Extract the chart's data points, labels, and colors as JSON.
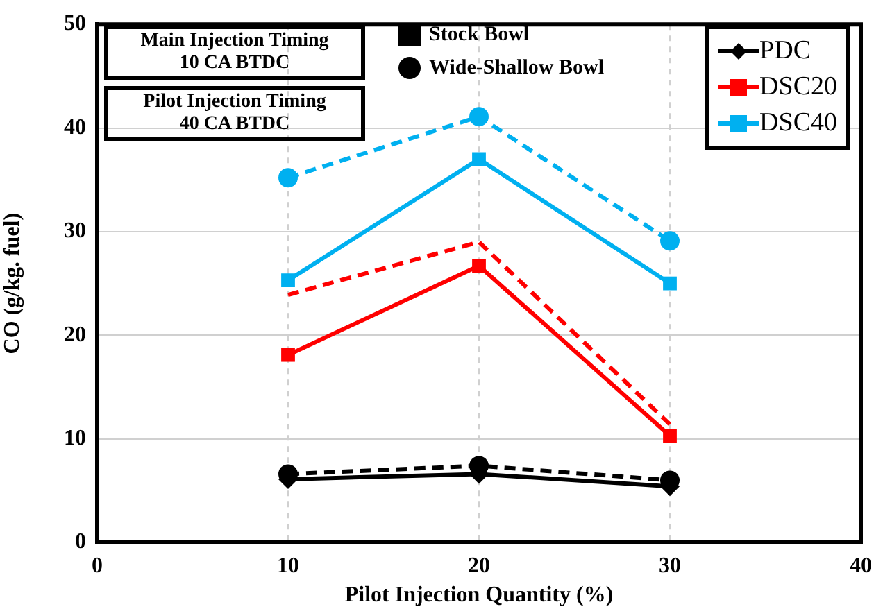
{
  "chart_data": {
    "type": "line",
    "xlabel": "Pilot Injection Quantity (%)",
    "ylabel": "CO (g/kg. fuel)",
    "x": [
      10,
      20,
      30
    ],
    "xlim": [
      0,
      40
    ],
    "xticks": [
      0,
      10,
      20,
      30,
      40
    ],
    "ylim": [
      0,
      50
    ],
    "yticks": [
      0,
      10,
      20,
      30,
      40,
      50
    ],
    "grid": true,
    "legend": "top right",
    "annotations": [
      "Main Injection Timing\n10 CA BTDC",
      "Pilot Injection Timing\n40 CA BTDC",
      "Stock Bowl",
      "Wide-Shallow Bowl"
    ],
    "series": [
      {
        "name": "PDC",
        "color": "#000000",
        "values": [
          6.1,
          6.6,
          5.4
        ],
        "marker": "diamond",
        "line_style": "solid"
      },
      {
        "name": "DSC20",
        "color": "#ff0000",
        "values": [
          18.1,
          26.7,
          10.3
        ],
        "marker": "square",
        "line_style": "solid"
      },
      {
        "name": "DSC40",
        "color": "#00b0f0",
        "values": [
          25.3,
          37.0,
          25.0
        ],
        "marker": "square",
        "line_style": "solid"
      },
      {
        "color": "#000000",
        "values": [
          6.6,
          7.4,
          6.0
        ],
        "marker": "circle",
        "line_style": "dashed"
      },
      {
        "color": "#ff0000",
        "values": [
          23.9,
          29.0,
          11.4
        ],
        "marker": "none",
        "line_style": "dashed"
      },
      {
        "color": "#00b0f0",
        "values": [
          35.2,
          41.1,
          29.1
        ],
        "marker": "circle",
        "line_style": "dashed"
      }
    ]
  }
}
